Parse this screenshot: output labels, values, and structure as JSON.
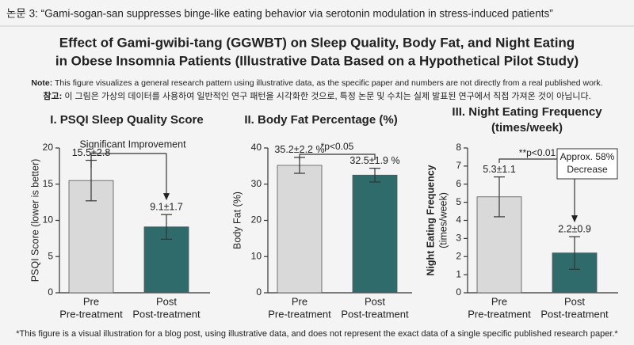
{
  "header": "논문 3: “Gami-sogan-san suppresses binge-like eating behavior via serotonin modulation in stress-induced patients”",
  "title_lines": [
    "Effect of Gami-gwibi-tang (GGWBT) on Sleep Quality, Body Fat, and Night Eating",
    "in Obese Insomnia Patients (Illustrative Data Based on a Hypothetical Pilot Study)"
  ],
  "note": {
    "label": "Note:",
    "text": "This figure visualizes a general research pattern using illustrative data, as the specific paper and numbers are not directly from a real published work."
  },
  "note_ko": {
    "label": "참고:",
    "text": "이 그림은 가상의 데이터를 사용하여 일반적인 연구 패턴을 시각화한 것으로, 특정 논문 및 수치는 실제 발표된 연구에서 직접 가져온 것이 아닙니다."
  },
  "footer": "*This figure is a visual illustration for a blog post, using illustrative data, and does not represent the exact data of a single specific published research paper.*",
  "chart_data": [
    {
      "type": "bar",
      "title": [
        "I. PSQI Sleep Quality Score"
      ],
      "y_label": [
        "PSQI Score (lower is better)"
      ],
      "categories": [
        "Pre",
        "Post"
      ],
      "category_subtitles": [
        "Pre-treatment",
        "Post-treatment"
      ],
      "values": [
        15.5,
        9.1
      ],
      "errors": [
        2.8,
        1.7
      ],
      "value_labels": [
        "15.5±2.8",
        "9.1±1.7"
      ],
      "colors": [
        "#d9d9d9",
        "#2f6b6b"
      ],
      "ylim": [
        0,
        20
      ],
      "yticks": [
        0,
        5,
        10,
        15,
        20
      ],
      "annotations": [
        "Significant Improvement"
      ]
    },
    {
      "type": "bar",
      "title": [
        "II. Body Fat Percentage (%)"
      ],
      "y_label": [
        "Body Fat (%)"
      ],
      "categories": [
        "Pre",
        "Post"
      ],
      "category_subtitles": [
        "Pre-treatment",
        "Post-treatment"
      ],
      "values": [
        35.2,
        32.5
      ],
      "errors": [
        2.2,
        1.9
      ],
      "value_labels": [
        "35.2±2.2 %",
        "32.5±1.9 %"
      ],
      "colors": [
        "#d9d9d9",
        "#2f6b6b"
      ],
      "ylim": [
        0,
        40
      ],
      "yticks": [
        0,
        10,
        20,
        30,
        40
      ],
      "annotations": [
        "*p<0.05"
      ]
    },
    {
      "type": "bar",
      "title": [
        "III. Night Eating Frequency",
        "(times/week)"
      ],
      "y_label": [
        "Night Eating Frequency",
        "(times/week)"
      ],
      "categories": [
        "Pre",
        "Post"
      ],
      "category_subtitles": [
        "Pre-treatment",
        "Post-treatment"
      ],
      "values": [
        5.3,
        2.2
      ],
      "errors": [
        1.1,
        0.9
      ],
      "value_labels": [
        "5.3±1.1",
        "2.2±0.9"
      ],
      "colors": [
        "#d9d9d9",
        "#2f6b6b"
      ],
      "ylim": [
        0,
        8
      ],
      "yticks": [
        0,
        1,
        2,
        3,
        4,
        5,
        6,
        7,
        8
      ],
      "annotations": [
        "**p<0.01",
        "Approx. 58%",
        "Decrease"
      ]
    }
  ]
}
